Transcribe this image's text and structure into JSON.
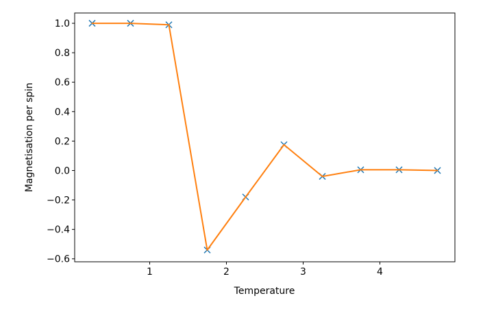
{
  "chart_data": {
    "type": "line",
    "title": "",
    "xlabel": "Temperature",
    "ylabel": "Magnetisation per spin",
    "xlim": [
      0.0225,
      4.9775
    ],
    "ylim": [
      -0.62,
      1.07
    ],
    "x_ticks": [
      1,
      2,
      3,
      4
    ],
    "y_ticks": [
      -0.6,
      -0.4,
      -0.2,
      0.0,
      0.2,
      0.4,
      0.6,
      0.8,
      1.0
    ],
    "x_tick_labels": [
      "1",
      "2",
      "3",
      "4"
    ],
    "y_tick_labels": [
      "−0.6",
      "−0.4",
      "−0.2",
      "0.0",
      "0.2",
      "0.4",
      "0.6",
      "0.8",
      "1.0"
    ],
    "grid": false,
    "series": [
      {
        "x": [
          0.25,
          0.75,
          1.25,
          1.75,
          2.25,
          2.75,
          3.25,
          3.75,
          4.25,
          4.75
        ],
        "values": [
          1.0,
          1.0,
          0.99,
          -0.54,
          -0.18,
          0.175,
          -0.04,
          0.005,
          0.005,
          0.0
        ],
        "style": "markers",
        "marker": "x",
        "color": "#1f77b4"
      },
      {
        "x": [
          0.25,
          0.75,
          1.25,
          1.75,
          2.25,
          2.75,
          3.25,
          3.75,
          4.25,
          4.75
        ],
        "values": [
          1.0,
          1.0,
          0.99,
          -0.54,
          -0.18,
          0.175,
          -0.04,
          0.005,
          0.005,
          0.0
        ],
        "style": "line",
        "color": "#ff7f0e"
      }
    ]
  }
}
